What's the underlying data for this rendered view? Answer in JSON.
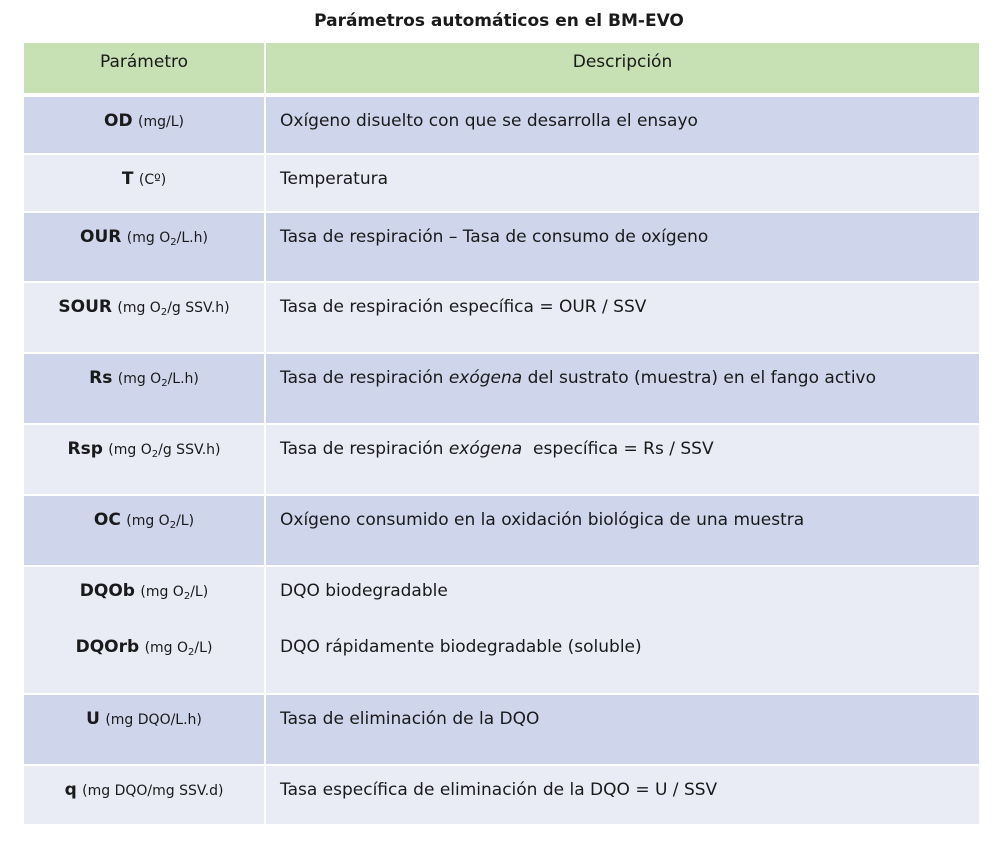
{
  "title": "Parámetros automáticos en el BM-EVO",
  "headers": {
    "param": "Parámetro",
    "desc": "Descripción"
  },
  "rows": [
    {
      "sym": "OD",
      "unit": "(mg/L)",
      "desc": "Oxígeno disuelto con que se desarrolla el ensayo"
    },
    {
      "sym": "T",
      "unit": "(Cº)",
      "desc": "Temperatura"
    },
    {
      "sym": "OUR",
      "unit_pre": "(mg O",
      "unit_sub": "2",
      "unit_post": "/L.h)",
      "desc": "Tasa de respiración – Tasa de consumo de oxígeno"
    },
    {
      "sym": "SOUR",
      "unit_pre": "(mg O",
      "unit_sub": "2",
      "unit_post": "/g SSV.h)",
      "desc": "Tasa de respiración específica = OUR / SSV"
    },
    {
      "sym": "Rs",
      "unit_pre": "(mg O",
      "unit_sub": "2",
      "unit_post": "/L.h)",
      "desc_pre": "Tasa de respiración ",
      "desc_em": "exógena",
      "desc_post": " del sustrato (muestra) en el fango activo"
    },
    {
      "sym": "Rsp",
      "unit_pre": "(mg O",
      "unit_sub": "2",
      "unit_post": "/g SSV.h)",
      "desc_pre": "Tasa de respiración ",
      "desc_em": "exógena",
      "desc_post": "  específica = Rs / SSV"
    },
    {
      "sym": "OC",
      "unit_pre": "(mg O",
      "unit_sub": "2",
      "unit_post": "/L)",
      "desc": "Oxígeno consumido en la oxidación biológica de una muestra"
    },
    {
      "sym": "DQOb",
      "unit_pre": "(mg O",
      "unit_sub": "2",
      "unit_post": "/L)",
      "desc": "DQO biodegradable",
      "sym2": "DQOrb",
      "unit2_pre": "(mg O",
      "unit2_sub": "2",
      "unit2_post": "/L)",
      "desc2": "DQO rápidamente biodegradable (soluble)"
    },
    {
      "sym": "U",
      "unit": "(mg DQO/L.h)",
      "desc": "Tasa de eliminación de la DQO"
    },
    {
      "sym": "q",
      "unit": "(mg DQO/mg SSV.d)",
      "desc": "Tasa específica de eliminación de la DQO = U / SSV"
    }
  ]
}
